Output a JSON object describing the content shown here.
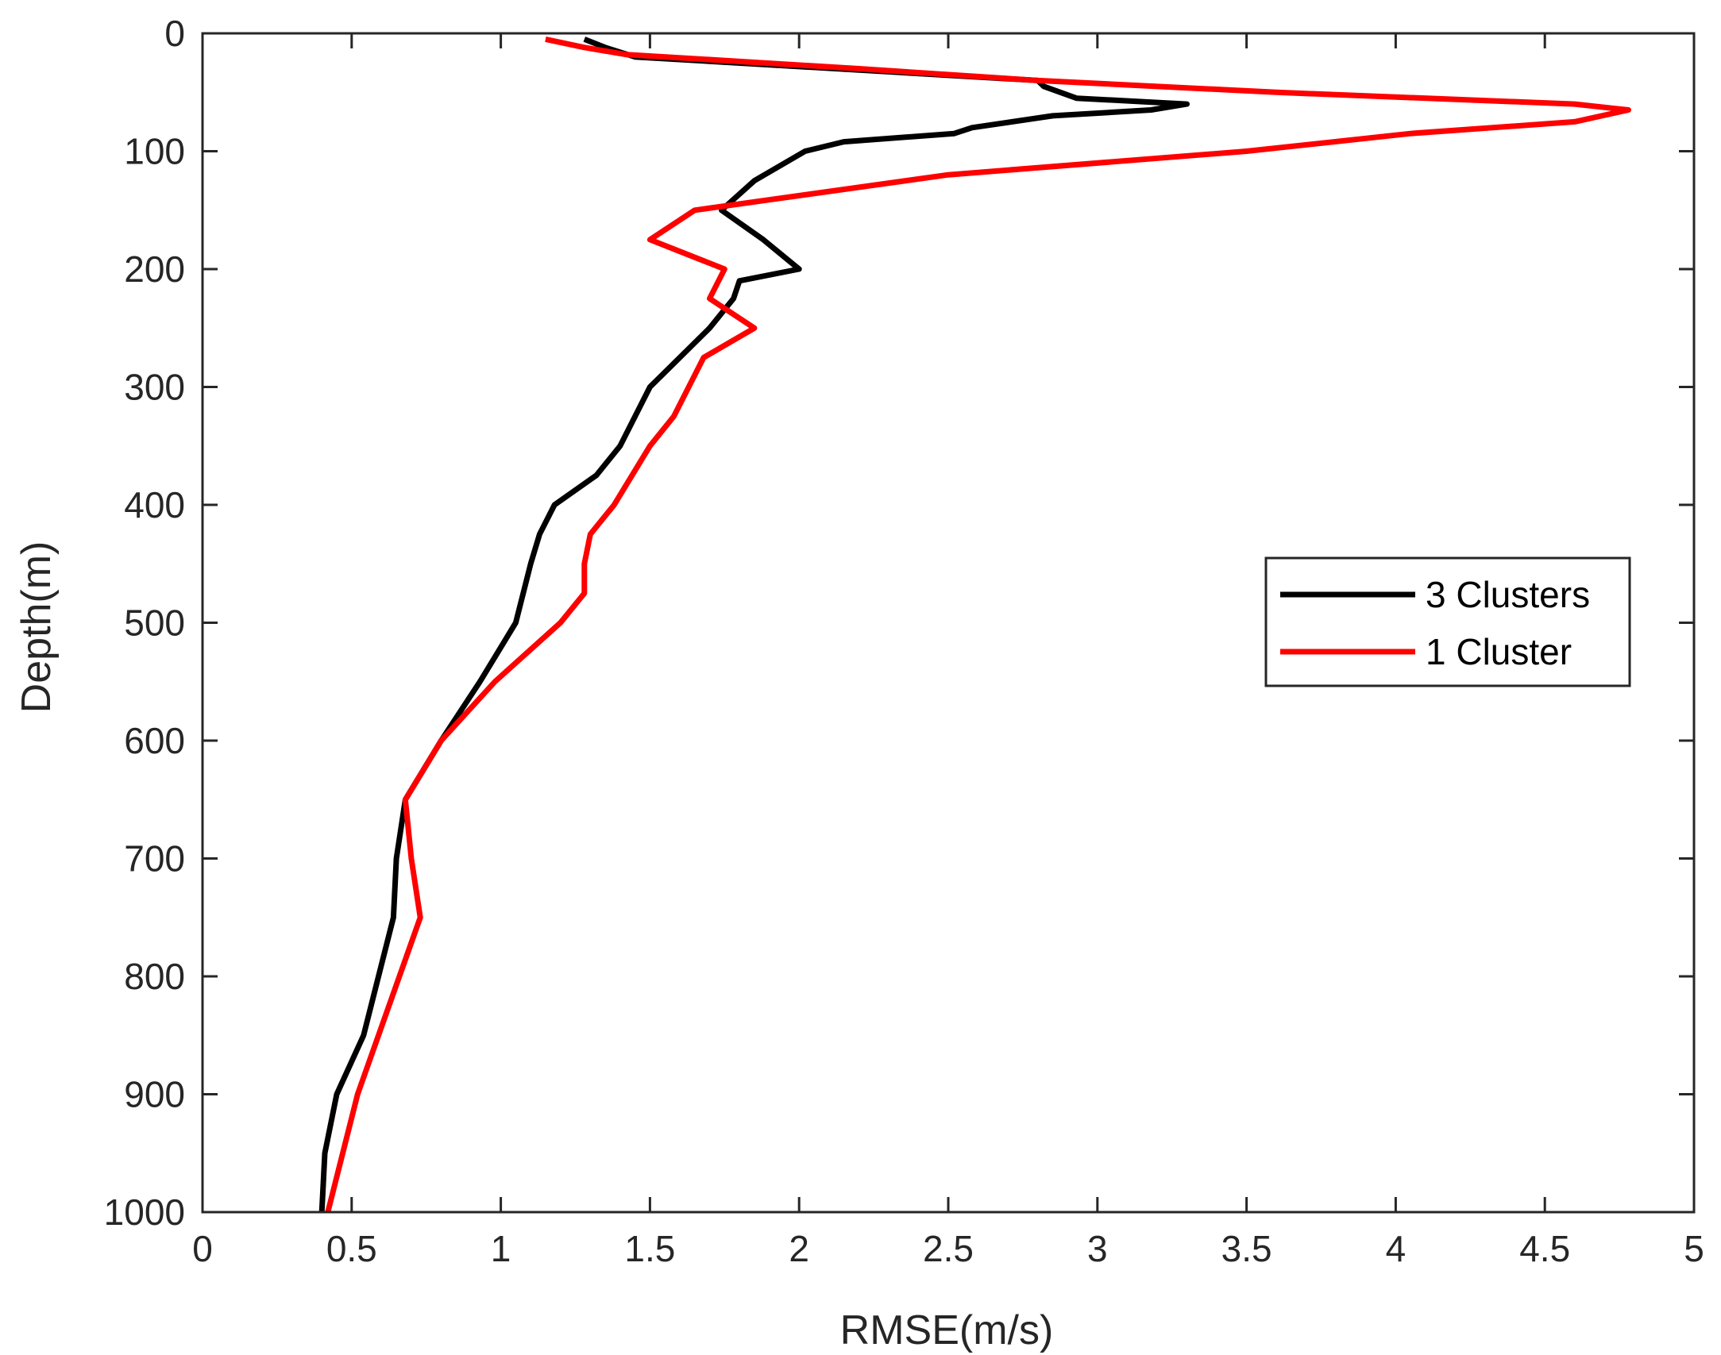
{
  "chart_data": {
    "type": "line",
    "title": "",
    "xlabel": "RMSE(m/s)",
    "ylabel": "Depth(m)",
    "xlim": [
      0,
      5
    ],
    "ylim": [
      0,
      1000
    ],
    "y_reversed": true,
    "x_ticks": [
      "0",
      "0.5",
      "1",
      "1.5",
      "2",
      "2.5",
      "3",
      "3.5",
      "4",
      "4.5",
      "5"
    ],
    "y_ticks": [
      "0",
      "100",
      "200",
      "300",
      "400",
      "500",
      "600",
      "700",
      "800",
      "900",
      "1000"
    ],
    "grid": false,
    "legend_position": "right",
    "series": [
      {
        "name": "3 Clusters",
        "color": "#000000",
        "x": [
          1.28,
          1.35,
          1.45,
          2.8,
          2.82,
          2.93,
          3.3,
          3.18,
          2.85,
          2.58,
          2.52,
          2.15,
          2.02,
          1.85,
          1.74,
          1.88,
          2.0,
          1.8,
          1.78,
          1.7,
          1.5,
          1.4,
          1.32,
          1.18,
          1.13,
          1.1,
          1.05,
          0.93,
          0.8,
          0.68,
          0.65,
          0.64,
          0.59,
          0.54,
          0.45,
          0.41,
          0.4
        ],
        "y": [
          5,
          12,
          20,
          40,
          45,
          55,
          60,
          65,
          70,
          80,
          85,
          92,
          100,
          125,
          150,
          175,
          200,
          210,
          225,
          250,
          300,
          350,
          375,
          400,
          425,
          450,
          500,
          550,
          600,
          650,
          700,
          750,
          800,
          850,
          900,
          950,
          1000
        ]
      },
      {
        "name": "1 Cluster",
        "color": "#ff0000",
        "x": [
          1.15,
          1.28,
          1.42,
          2.2,
          2.8,
          3.6,
          4.6,
          4.78,
          4.6,
          4.05,
          3.5,
          2.5,
          1.65,
          1.5,
          1.75,
          1.7,
          1.85,
          1.68,
          1.58,
          1.5,
          1.38,
          1.3,
          1.28,
          1.28,
          1.2,
          0.98,
          0.8,
          0.68,
          0.7,
          0.73,
          0.52,
          0.42
        ],
        "y": [
          5,
          12,
          18,
          30,
          40,
          50,
          60,
          65,
          75,
          85,
          100,
          120,
          150,
          175,
          200,
          225,
          250,
          275,
          325,
          350,
          400,
          425,
          450,
          475,
          500,
          550,
          600,
          650,
          700,
          750,
          900,
          1000
        ]
      }
    ]
  }
}
